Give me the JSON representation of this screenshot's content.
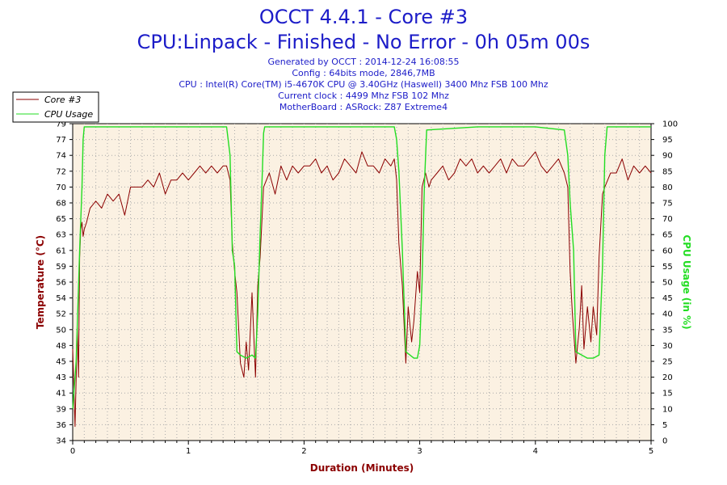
{
  "header": {
    "title": "OCCT 4.4.1 - Core #3",
    "subtitle": "CPU:Linpack - Finished - No Error - 0h 05m 00s",
    "info_lines": [
      "Generated by OCCT : 2014-12-24 16:08:55",
      "Config : 64bits mode, 2846,7MB",
      "CPU : Intel(R) Core(TM) i5-4670K CPU @ 3.40GHz (Haswell) 3400 Mhz FSB 100 Mhz",
      "Current clock : 4499 Mhz FSB 102 Mhz",
      "MotherBoard : ASRock: Z87 Extreme4"
    ]
  },
  "colors": {
    "temperature": "#8b0000",
    "cpu_usage": "#22dd22",
    "plot_background": "#fbf1e2",
    "grid": "#999999",
    "title": "#1c1cc8"
  },
  "chart_data": {
    "type": "line",
    "xlabel": "Duration (Minutes)",
    "ylabel": "Temperature (°C)",
    "y2label": "CPU Usage (in %)",
    "xlim": [
      0,
      5
    ],
    "ylim": [
      34,
      79
    ],
    "y2lim": [
      0,
      100
    ],
    "x_ticks": [
      "0",
      "1",
      "2",
      "3",
      "4",
      "5"
    ],
    "y_ticks": [
      "34",
      "36",
      "39",
      "41",
      "43",
      "45",
      "48",
      "50",
      "52",
      "54",
      "56",
      "59",
      "61",
      "63",
      "65",
      "68",
      "70",
      "72",
      "74",
      "77",
      "79"
    ],
    "y2_ticks": [
      "0",
      "5",
      "10",
      "15",
      "20",
      "25",
      "30",
      "35",
      "40",
      "45",
      "50",
      "55",
      "60",
      "65",
      "70",
      "75",
      "80",
      "85",
      "90",
      "95",
      "100"
    ],
    "grid": true,
    "legend_position": "top-left",
    "series": [
      {
        "name": "Core #3",
        "axis": "left",
        "x": [
          0,
          0.02,
          0.04,
          0.05,
          0.06,
          0.07,
          0.08,
          0.09,
          0.1,
          0.12,
          0.15,
          0.2,
          0.25,
          0.3,
          0.35,
          0.4,
          0.45,
          0.5,
          0.55,
          0.6,
          0.65,
          0.7,
          0.75,
          0.8,
          0.85,
          0.9,
          0.95,
          1.0,
          1.05,
          1.1,
          1.15,
          1.2,
          1.25,
          1.3,
          1.33,
          1.36,
          1.38,
          1.4,
          1.42,
          1.45,
          1.48,
          1.5,
          1.52,
          1.55,
          1.58,
          1.6,
          1.62,
          1.65,
          1.7,
          1.75,
          1.8,
          1.85,
          1.9,
          1.95,
          2.0,
          2.05,
          2.1,
          2.15,
          2.2,
          2.25,
          2.3,
          2.35,
          2.4,
          2.45,
          2.5,
          2.55,
          2.6,
          2.65,
          2.7,
          2.75,
          2.78,
          2.8,
          2.82,
          2.85,
          2.88,
          2.9,
          2.93,
          2.95,
          2.98,
          3.0,
          3.02,
          3.05,
          3.08,
          3.1,
          3.15,
          3.2,
          3.25,
          3.3,
          3.35,
          3.4,
          3.45,
          3.5,
          3.55,
          3.6,
          3.65,
          3.7,
          3.75,
          3.8,
          3.85,
          3.9,
          3.95,
          4.0,
          4.05,
          4.1,
          4.15,
          4.2,
          4.25,
          4.28,
          4.3,
          4.32,
          4.35,
          4.38,
          4.4,
          4.42,
          4.45,
          4.48,
          4.5,
          4.53,
          4.55,
          4.58,
          4.6,
          4.65,
          4.7,
          4.75,
          4.8,
          4.85,
          4.9,
          4.95,
          5.0
        ],
        "values": [
          47,
          36,
          50,
          43,
          60,
          64,
          65,
          63,
          64,
          65,
          67,
          68,
          67,
          69,
          68,
          69,
          66,
          70,
          70,
          70,
          71,
          70,
          72,
          69,
          71,
          71,
          72,
          71,
          72,
          73,
          72,
          73,
          72,
          73,
          73,
          71,
          62,
          58,
          55,
          45,
          43,
          48,
          44,
          55,
          43,
          56,
          60,
          70,
          72,
          69,
          73,
          71,
          73,
          72,
          73,
          73,
          74,
          72,
          73,
          71,
          72,
          74,
          73,
          72,
          75,
          73,
          73,
          72,
          74,
          73,
          74,
          71,
          62,
          56,
          45,
          53,
          48,
          51,
          58,
          55,
          70,
          72,
          70,
          71,
          72,
          73,
          71,
          72,
          74,
          73,
          74,
          72,
          73,
          72,
          73,
          74,
          72,
          74,
          73,
          73,
          74,
          75,
          73,
          72,
          73,
          74,
          72,
          70,
          58,
          52,
          45,
          50,
          56,
          47,
          53,
          48,
          53,
          49,
          60,
          69,
          70,
          72,
          72,
          74,
          71,
          73,
          72,
          73,
          72
        ]
      },
      {
        "name": "CPU Usage",
        "axis": "right",
        "x": [
          0,
          0.03,
          0.06,
          0.08,
          0.09,
          0.1,
          0.11,
          0.12,
          0.5,
          1.0,
          1.3,
          1.33,
          1.36,
          1.38,
          1.4,
          1.42,
          1.45,
          1.5,
          1.55,
          1.58,
          1.6,
          1.62,
          1.64,
          1.65,
          1.66,
          1.68,
          2.0,
          2.5,
          2.78,
          2.8,
          2.82,
          2.85,
          2.88,
          2.95,
          2.98,
          3.0,
          3.02,
          3.04,
          3.06,
          3.5,
          4.0,
          4.25,
          4.28,
          4.3,
          4.33,
          4.35,
          4.45,
          4.5,
          4.55,
          4.58,
          4.6,
          4.62,
          5.0
        ],
        "values": [
          10,
          25,
          60,
          80,
          95,
          99,
          99,
          99,
          99,
          99,
          99,
          99,
          90,
          60,
          55,
          28,
          27,
          26,
          27,
          26,
          40,
          65,
          85,
          97,
          99,
          99,
          99,
          99,
          99,
          95,
          85,
          60,
          28,
          26,
          26,
          30,
          50,
          80,
          98,
          99,
          99,
          98,
          90,
          75,
          60,
          28,
          26,
          26,
          27,
          55,
          90,
          99,
          99
        ]
      }
    ]
  }
}
